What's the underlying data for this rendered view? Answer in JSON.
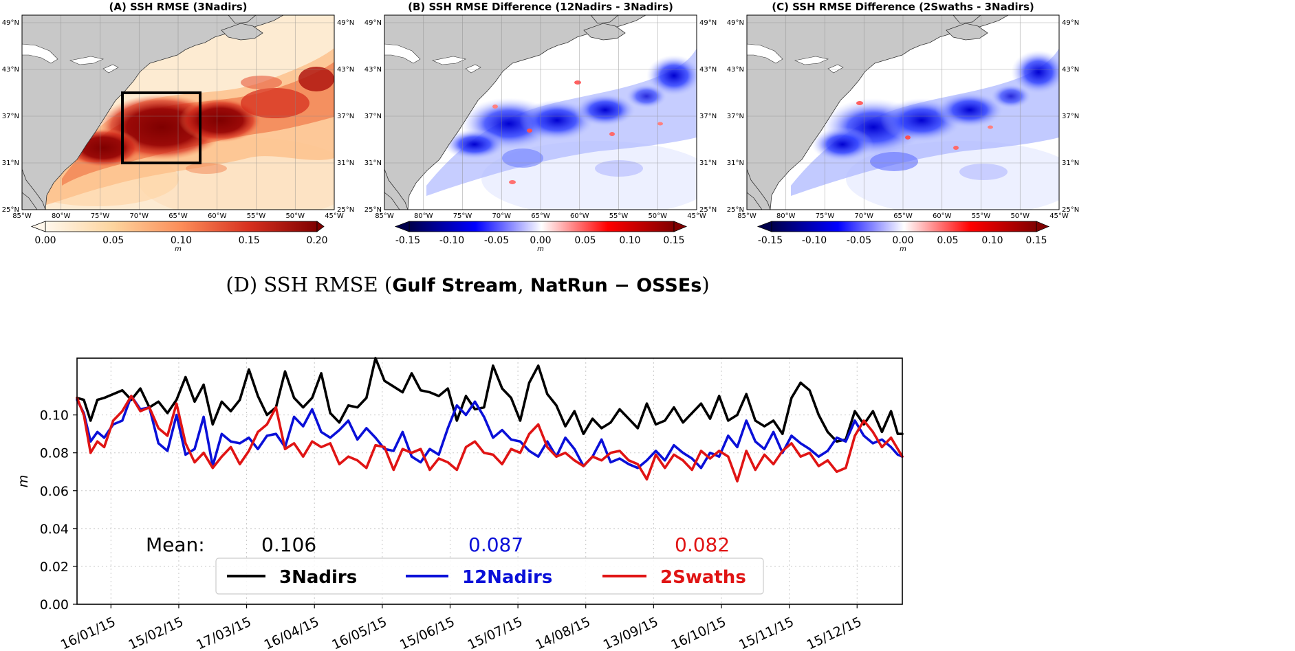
{
  "chart_data": [
    {
      "type": "heatmap",
      "title": "(A) SSH RMSE (3Nadirs)",
      "colormap": "OrRd",
      "colorbar_ticks": [
        "0.00",
        "0.05",
        "0.10",
        "0.15",
        "0.20"
      ],
      "colorbar_range": [
        0,
        0.2
      ],
      "colorbar_extend": "both",
      "colorbar_label": "m",
      "lon_ticks": [
        "85°W",
        "80°W",
        "75°W",
        "70°W",
        "65°W",
        "60°W",
        "55°W",
        "50°W",
        "45°W"
      ],
      "lat_ticks": [
        "49°N",
        "43°N",
        "37°N",
        "31°N",
        "25°N"
      ],
      "highlight_box": {
        "lon": [
          -72,
          -62
        ],
        "lat": [
          31,
          40
        ]
      }
    },
    {
      "type": "heatmap",
      "title": "(B) SSH RMSE Difference (12Nadirs - 3Nadirs)",
      "colormap": "seismic",
      "colorbar_ticks": [
        "-0.15",
        "-0.10",
        "-0.05",
        "0.00",
        "0.05",
        "0.10",
        "0.15"
      ],
      "colorbar_range": [
        -0.15,
        0.15
      ],
      "colorbar_extend": "both",
      "colorbar_label": "m",
      "lon_ticks": [
        "85°W",
        "80°W",
        "75°W",
        "70°W",
        "65°W",
        "60°W",
        "55°W",
        "50°W",
        "45°W"
      ],
      "lat_ticks": [
        "49°N",
        "43°N",
        "37°N",
        "31°N",
        "25°N"
      ]
    },
    {
      "type": "heatmap",
      "title": "(C) SSH RMSE Difference (2Swaths - 3Nadirs)",
      "colormap": "seismic",
      "colorbar_ticks": [
        "-0.15",
        "-0.10",
        "-0.05",
        "0.00",
        "0.05",
        "0.10",
        "0.15"
      ],
      "colorbar_range": [
        -0.15,
        0.15
      ],
      "colorbar_extend": "both",
      "colorbar_label": "m",
      "lon_ticks": [
        "85°W",
        "80°W",
        "75°W",
        "70°W",
        "65°W",
        "60°W",
        "55°W",
        "50°W",
        "45°W"
      ],
      "lat_ticks": [
        "49°N",
        "43°N",
        "37°N",
        "31°N",
        "25°N"
      ]
    },
    {
      "type": "line",
      "title_prefix": "(D) SSH  RMSE (",
      "title_bold_1": "Gulf Stream",
      "title_sep": ", ",
      "title_bold_2": "NatRun  −  OSSEs",
      "title_suffix": ")",
      "ylabel": "m",
      "ylim": [
        0,
        0.13
      ],
      "yticks": [
        "0.00",
        "0.02",
        "0.04",
        "0.06",
        "0.08",
        "0.10"
      ],
      "xlim": [
        0,
        365
      ],
      "x_tick_days": [
        15,
        45,
        75,
        105,
        135,
        165,
        195,
        225,
        255,
        285,
        315,
        345
      ],
      "x_tick_labels": [
        "16/01/15",
        "15/02/15",
        "17/03/15",
        "16/04/15",
        "16/05/15",
        "15/06/15",
        "15/07/15",
        "14/08/15",
        "13/09/15",
        "16/10/15",
        "15/11/15",
        "15/12/15"
      ],
      "mean_label": "Mean:",
      "series": [
        {
          "name": "3Nadirs",
          "color": "#000000",
          "mean": "0.106",
          "x": [
            0,
            3,
            6,
            9,
            12,
            16,
            20,
            24,
            28,
            32,
            36,
            40,
            44,
            48,
            52,
            56,
            60,
            64,
            68,
            72,
            76,
            80,
            84,
            88,
            92,
            96,
            100,
            104,
            108,
            112,
            116,
            120,
            124,
            128,
            132,
            136,
            140,
            144,
            148,
            152,
            156,
            160,
            164,
            168,
            172,
            176,
            180,
            184,
            188,
            192,
            196,
            200,
            204,
            208,
            212,
            216,
            220,
            224,
            228,
            232,
            236,
            240,
            244,
            248,
            252,
            256,
            260,
            264,
            268,
            272,
            276,
            280,
            284,
            288,
            292,
            296,
            300,
            304,
            308,
            312,
            316,
            320,
            324,
            328,
            332,
            336,
            340,
            344,
            348,
            352,
            356,
            360,
            363,
            365
          ],
          "y": [
            0.109,
            0.108,
            0.097,
            0.108,
            0.109,
            0.111,
            0.113,
            0.108,
            0.114,
            0.104,
            0.107,
            0.101,
            0.108,
            0.12,
            0.107,
            0.116,
            0.095,
            0.107,
            0.102,
            0.108,
            0.124,
            0.11,
            0.1,
            0.104,
            0.123,
            0.109,
            0.104,
            0.109,
            0.122,
            0.101,
            0.096,
            0.105,
            0.104,
            0.109,
            0.13,
            0.118,
            0.115,
            0.112,
            0.122,
            0.113,
            0.112,
            0.11,
            0.114,
            0.097,
            0.11,
            0.103,
            0.104,
            0.126,
            0.114,
            0.109,
            0.097,
            0.117,
            0.126,
            0.111,
            0.105,
            0.094,
            0.102,
            0.09,
            0.098,
            0.093,
            0.096,
            0.103,
            0.098,
            0.093,
            0.106,
            0.095,
            0.097,
            0.104,
            0.096,
            0.101,
            0.106,
            0.098,
            0.11,
            0.097,
            0.1,
            0.111,
            0.097,
            0.094,
            0.097,
            0.09,
            0.109,
            0.117,
            0.113,
            0.1,
            0.091,
            0.086,
            0.087,
            0.102,
            0.095,
            0.102,
            0.091,
            0.102,
            0.09,
            0.09
          ]
        },
        {
          "name": "12Nadirs",
          "color": "#0a10d8",
          "mean": "0.087",
          "x": [
            0,
            3,
            6,
            9,
            12,
            16,
            20,
            24,
            28,
            32,
            36,
            40,
            44,
            48,
            52,
            56,
            60,
            64,
            68,
            72,
            76,
            80,
            84,
            88,
            92,
            96,
            100,
            104,
            108,
            112,
            116,
            120,
            124,
            128,
            132,
            136,
            140,
            144,
            148,
            152,
            156,
            160,
            164,
            168,
            172,
            176,
            180,
            184,
            188,
            192,
            196,
            200,
            204,
            208,
            212,
            216,
            220,
            224,
            228,
            232,
            236,
            240,
            244,
            248,
            252,
            256,
            260,
            264,
            268,
            272,
            276,
            280,
            284,
            288,
            292,
            296,
            300,
            304,
            308,
            312,
            316,
            320,
            324,
            328,
            332,
            336,
            340,
            344,
            348,
            352,
            356,
            360,
            363,
            365
          ],
          "y": [
            0.108,
            0.101,
            0.086,
            0.091,
            0.088,
            0.095,
            0.097,
            0.11,
            0.103,
            0.104,
            0.085,
            0.081,
            0.1,
            0.079,
            0.082,
            0.099,
            0.073,
            0.09,
            0.086,
            0.085,
            0.088,
            0.082,
            0.089,
            0.09,
            0.083,
            0.099,
            0.094,
            0.103,
            0.091,
            0.088,
            0.092,
            0.097,
            0.087,
            0.093,
            0.088,
            0.082,
            0.081,
            0.091,
            0.078,
            0.075,
            0.082,
            0.079,
            0.093,
            0.105,
            0.1,
            0.107,
            0.099,
            0.088,
            0.092,
            0.087,
            0.086,
            0.081,
            0.078,
            0.086,
            0.078,
            0.088,
            0.082,
            0.073,
            0.078,
            0.087,
            0.075,
            0.077,
            0.074,
            0.072,
            0.076,
            0.081,
            0.076,
            0.084,
            0.08,
            0.077,
            0.072,
            0.08,
            0.078,
            0.089,
            0.083,
            0.097,
            0.086,
            0.082,
            0.091,
            0.08,
            0.089,
            0.085,
            0.082,
            0.078,
            0.081,
            0.088,
            0.086,
            0.097,
            0.089,
            0.085,
            0.087,
            0.083,
            0.079,
            0.078
          ]
        },
        {
          "name": "2Swaths",
          "color": "#e01414",
          "mean": "0.082",
          "x": [
            0,
            3,
            6,
            9,
            12,
            16,
            20,
            24,
            28,
            32,
            36,
            40,
            44,
            48,
            52,
            56,
            60,
            64,
            68,
            72,
            76,
            80,
            84,
            88,
            92,
            96,
            100,
            104,
            108,
            112,
            116,
            120,
            124,
            128,
            132,
            136,
            140,
            144,
            148,
            152,
            156,
            160,
            164,
            168,
            172,
            176,
            180,
            184,
            188,
            192,
            196,
            200,
            204,
            208,
            212,
            216,
            220,
            224,
            228,
            232,
            236,
            240,
            244,
            248,
            252,
            256,
            260,
            264,
            268,
            272,
            276,
            280,
            284,
            288,
            292,
            296,
            300,
            304,
            308,
            312,
            316,
            320,
            324,
            328,
            332,
            336,
            340,
            344,
            348,
            352,
            356,
            360,
            363,
            365
          ],
          "y": [
            0.109,
            0.1,
            0.08,
            0.086,
            0.083,
            0.097,
            0.102,
            0.11,
            0.102,
            0.104,
            0.093,
            0.089,
            0.106,
            0.085,
            0.075,
            0.08,
            0.072,
            0.078,
            0.083,
            0.074,
            0.081,
            0.091,
            0.095,
            0.104,
            0.082,
            0.085,
            0.078,
            0.086,
            0.083,
            0.085,
            0.074,
            0.078,
            0.076,
            0.072,
            0.084,
            0.083,
            0.071,
            0.082,
            0.08,
            0.082,
            0.071,
            0.077,
            0.075,
            0.071,
            0.083,
            0.086,
            0.08,
            0.079,
            0.074,
            0.082,
            0.08,
            0.09,
            0.095,
            0.083,
            0.078,
            0.08,
            0.076,
            0.073,
            0.078,
            0.076,
            0.08,
            0.081,
            0.076,
            0.074,
            0.066,
            0.079,
            0.072,
            0.079,
            0.076,
            0.071,
            0.081,
            0.077,
            0.081,
            0.078,
            0.065,
            0.081,
            0.071,
            0.079,
            0.074,
            0.081,
            0.085,
            0.078,
            0.08,
            0.073,
            0.076,
            0.07,
            0.072,
            0.089,
            0.097,
            0.091,
            0.083,
            0.088,
            0.082,
            0.078
          ]
        }
      ]
    }
  ]
}
